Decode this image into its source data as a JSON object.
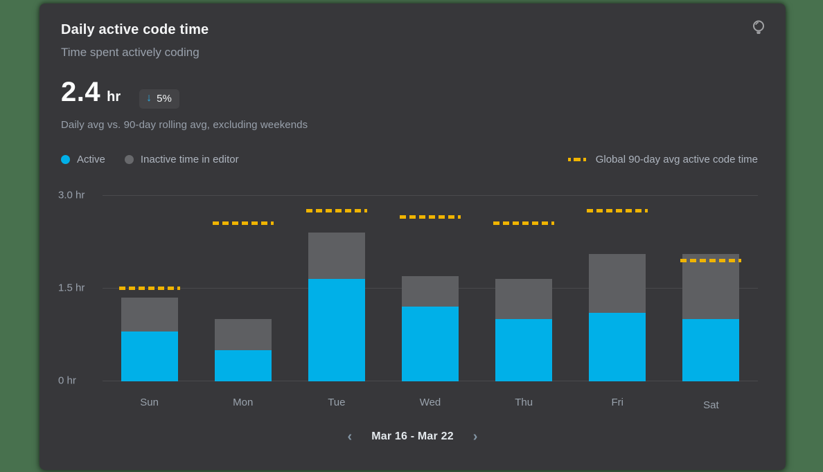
{
  "page": {
    "background_color": "#48714e"
  },
  "card": {
    "background_color": "#37373a",
    "title": "Daily active code time",
    "subtitle": "Time spent actively coding",
    "insight_icon": "lightbulb-icon",
    "metric": {
      "value": "2.4",
      "unit": "hr",
      "delta_icon": "↓",
      "delta": "5%",
      "delta_direction": "down"
    },
    "caption": "Daily avg vs. 90-day rolling avg, excluding weekends"
  },
  "legend": {
    "series": [
      {
        "label": "Active",
        "color": "#00b0e8",
        "marker": "dot"
      },
      {
        "label": "Inactive time in editor",
        "color": "#68696c",
        "marker": "dot"
      }
    ],
    "overlay": {
      "label": "Global 90-day avg active code time",
      "color": "#f0b400",
      "marker": "dashed-line"
    }
  },
  "chart_data": {
    "type": "bar",
    "stacked": true,
    "unit": "hr",
    "categories": [
      "Sun",
      "Mon",
      "Tue",
      "Wed",
      "Thu",
      "Fri",
      "Sat"
    ],
    "series": [
      {
        "name": "Active",
        "color": "#00b0e8",
        "values": [
          0.8,
          0.5,
          1.65,
          1.2,
          1.0,
          1.1,
          1.0
        ]
      },
      {
        "name": "Inactive time in editor",
        "color": "#5e5f62",
        "values": [
          0.55,
          0.5,
          0.75,
          0.5,
          0.65,
          0.95,
          1.05
        ]
      }
    ],
    "overlay_series": {
      "name": "Global 90-day avg active code time",
      "style": "dashed",
      "color": "#f0b400",
      "values": [
        1.5,
        2.55,
        2.75,
        2.65,
        2.55,
        2.75,
        1.95
      ]
    },
    "y_ticks": [
      {
        "label": "3.0 hr",
        "value": 3.0
      },
      {
        "label": "1.5 hr",
        "value": 1.5
      },
      {
        "label": "0 hr",
        "value": 0
      }
    ],
    "ylim": [
      0,
      3.0
    ],
    "grid": "horizontal",
    "legend_position": "top"
  },
  "pagination": {
    "prev_icon": "‹",
    "label": "Mar 16 - Mar 22",
    "next_icon": "›"
  }
}
